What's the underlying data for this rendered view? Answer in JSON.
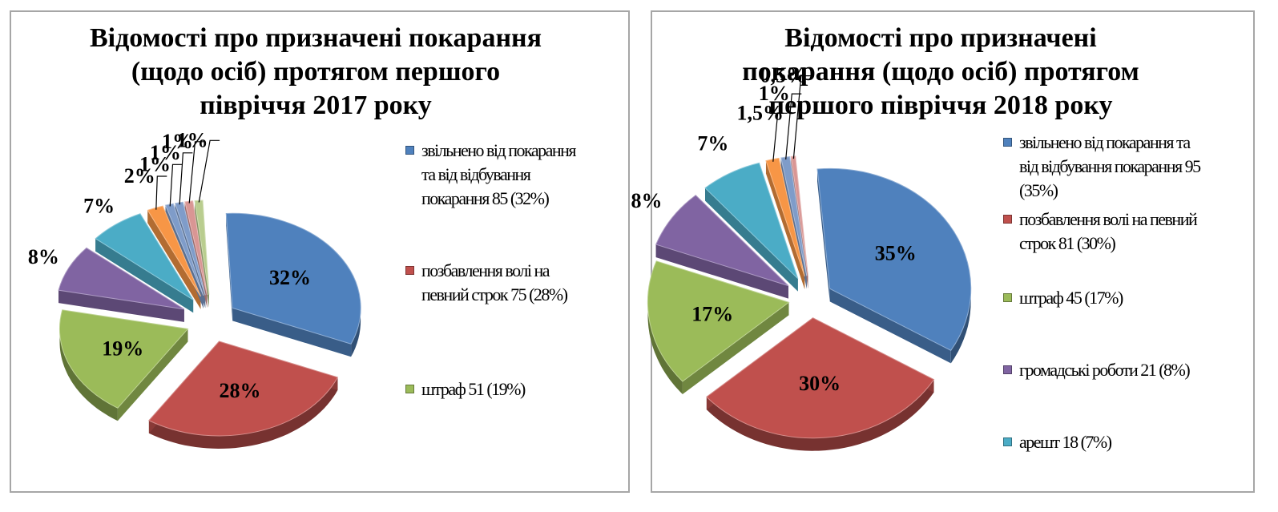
{
  "colors": {
    "blue": "#4f81bd",
    "red": "#c0504d",
    "green": "#9bbb59",
    "purple": "#8064a2",
    "aqua": "#4bacc6",
    "orange": "#f79646",
    "steel": "#7f9cc9",
    "pink": "#d99694",
    "olive": "#b9cd8f",
    "panel_border": "#a6a6a6"
  },
  "chart_data": [
    {
      "type": "pie",
      "title": [
        "Відомості про призначені покарання",
        "(щодо осіб) протягом першого",
        "півріччя 2017 року"
      ],
      "slices": [
        {
          "label": "32%",
          "value": 32,
          "color": "blue"
        },
        {
          "label": "28%",
          "value": 28,
          "color": "red"
        },
        {
          "label": "19%",
          "value": 19,
          "color": "green"
        },
        {
          "label": "8%",
          "value": 8,
          "color": "purple"
        },
        {
          "label": "7%",
          "value": 7,
          "color": "aqua"
        },
        {
          "label": "2%",
          "value": 2,
          "color": "orange"
        },
        {
          "label": "1%",
          "value": 1,
          "color": "steel"
        },
        {
          "label": "1%",
          "value": 1,
          "color": "steel"
        },
        {
          "label": "1%",
          "value": 1,
          "color": "pink"
        },
        {
          "label": "1%",
          "value": 1,
          "color": "olive"
        }
      ],
      "legend": [
        {
          "color": "blue",
          "lines": [
            "звільнено від покарання",
            "та від відбування",
            "покарання  85 (32%)"
          ]
        },
        {
          "color": "red",
          "lines": [
            "позбавлення волі на",
            "певний строк  75 (28%)"
          ]
        },
        {
          "color": "green",
          "lines": [
            "штраф  51 (19%)"
          ]
        }
      ]
    },
    {
      "type": "pie",
      "title": [
        "Відомості про призначені",
        "покарання (щодо осіб) протягом",
        "першого півріччя 2018 року"
      ],
      "slices": [
        {
          "label": "35%",
          "value": 35,
          "color": "blue"
        },
        {
          "label": "30%",
          "value": 30,
          "color": "red"
        },
        {
          "label": "17%",
          "value": 17,
          "color": "green"
        },
        {
          "label": "8%",
          "value": 8,
          "color": "purple"
        },
        {
          "label": "7%",
          "value": 7,
          "color": "aqua"
        },
        {
          "label": "1,5%",
          "value": 1.5,
          "color": "orange"
        },
        {
          "label": "1%",
          "value": 1,
          "color": "steel"
        },
        {
          "label": "0,5%",
          "value": 0.5,
          "color": "pink"
        }
      ],
      "legend": [
        {
          "color": "blue",
          "lines": [
            "звільнено від покарання та",
            "від відбування покарання  95",
            "(35%)"
          ]
        },
        {
          "color": "red",
          "lines": [
            "позбавлення волі на певний",
            "строк  81 (30%)"
          ]
        },
        {
          "color": "green",
          "lines": [
            "штраф  45 (17%)"
          ]
        },
        {
          "color": "purple",
          "lines": [
            "громадські роботи  21 (8%)"
          ]
        },
        {
          "color": "aqua",
          "lines": [
            "арешт  18 (7%)"
          ]
        }
      ]
    }
  ]
}
